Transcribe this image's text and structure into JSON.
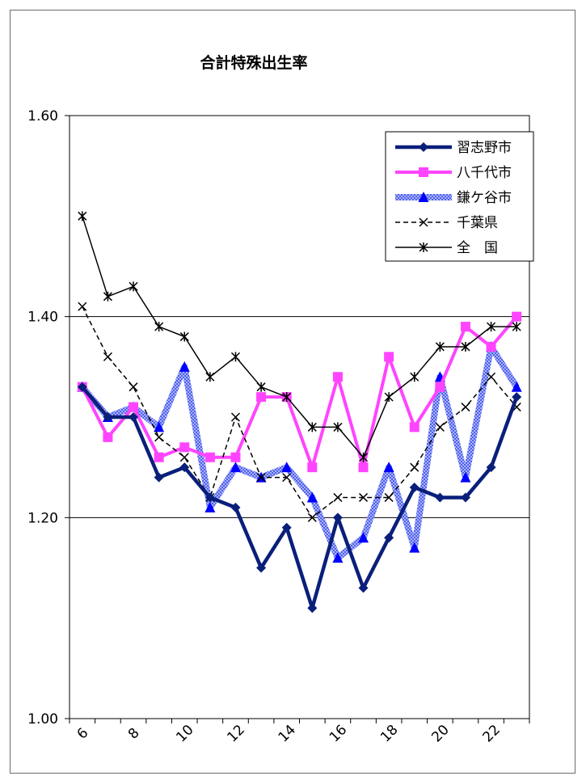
{
  "chart_data": {
    "type": "line",
    "title": "合計特殊出生率",
    "xlabel": "",
    "ylabel": "",
    "x": [
      6,
      7,
      8,
      9,
      10,
      11,
      12,
      13,
      14,
      15,
      16,
      17,
      18,
      19,
      20,
      21,
      22,
      23
    ],
    "x_tick_labels": [
      "6",
      "8",
      "10",
      "12",
      "14",
      "16",
      "18",
      "20",
      "22"
    ],
    "y_tick_labels": [
      "1.00",
      "1.20",
      "1.40",
      "1.60"
    ],
    "ylim": [
      1.0,
      1.6
    ],
    "grid": "horizontal",
    "legend_position": "top-right",
    "series": [
      {
        "name": "習志野市",
        "color": "#0a1f7a",
        "marker": "diamond",
        "style": "thick-solid",
        "values": [
          1.33,
          1.3,
          1.3,
          1.24,
          1.25,
          1.22,
          1.21,
          1.15,
          1.19,
          1.11,
          1.2,
          1.13,
          1.18,
          1.23,
          1.22,
          1.22,
          1.25,
          1.32
        ]
      },
      {
        "name": "八千代市",
        "color": "#ff44ff",
        "marker": "square",
        "style": "solid",
        "values": [
          1.33,
          1.28,
          1.31,
          1.26,
          1.27,
          1.26,
          1.26,
          1.32,
          1.32,
          1.25,
          1.34,
          1.25,
          1.36,
          1.29,
          1.33,
          1.39,
          1.37,
          1.4
        ]
      },
      {
        "name": "鎌ケ谷市",
        "color": "#0000ff",
        "marker": "triangle",
        "style": "thick-pattern",
        "values": [
          1.33,
          1.3,
          1.31,
          1.29,
          1.35,
          1.21,
          1.25,
          1.24,
          1.25,
          1.22,
          1.16,
          1.18,
          1.25,
          1.17,
          1.34,
          1.24,
          1.37,
          1.33
        ]
      },
      {
        "name": "千葉県",
        "color": "#000000",
        "marker": "x",
        "style": "dashed",
        "values": [
          1.41,
          1.36,
          1.33,
          1.28,
          1.26,
          1.22,
          1.3,
          1.24,
          1.24,
          1.2,
          1.22,
          1.22,
          1.22,
          1.25,
          1.29,
          1.31,
          1.34,
          1.31
        ]
      },
      {
        "name": "全　国",
        "color": "#000000",
        "marker": "asterisk",
        "style": "solid",
        "values": [
          1.5,
          1.42,
          1.43,
          1.39,
          1.38,
          1.34,
          1.36,
          1.33,
          1.32,
          1.29,
          1.29,
          1.26,
          1.32,
          1.34,
          1.37,
          1.37,
          1.39,
          1.39
        ]
      }
    ]
  }
}
